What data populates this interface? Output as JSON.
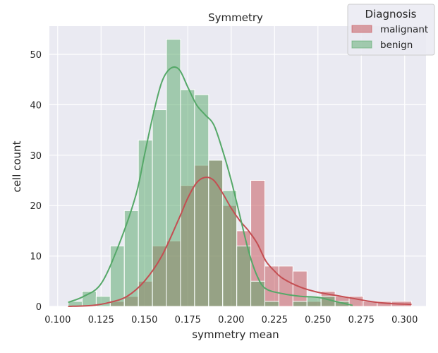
{
  "chart_data": {
    "type": "bar",
    "title": "Symmetry",
    "xlabel": "symmetry mean",
    "ylabel": "cell count",
    "xlim": [
      0.0952,
      0.3123
    ],
    "ylim": [
      0,
      55.6
    ],
    "xticks": [
      "0.100",
      "0.125",
      "0.150",
      "0.175",
      "0.200",
      "0.225",
      "0.250",
      "0.275",
      "0.300"
    ],
    "yticks": [
      "0",
      "10",
      "20",
      "30",
      "40",
      "50"
    ],
    "grid": true,
    "legend": {
      "title": "Diagnosis",
      "placement": "top-right"
    },
    "bin_edges": [
      0.106,
      0.1141,
      0.1222,
      0.1303,
      0.1384,
      0.1465,
      0.1546,
      0.1627,
      0.1708,
      0.1789,
      0.187,
      0.1951,
      0.2032,
      0.2113,
      0.2194,
      0.2275,
      0.2356,
      0.2437,
      0.2518,
      0.2599,
      0.268,
      0.2761,
      0.2842,
      0.2923,
      0.304
    ],
    "series": [
      {
        "name": "malignant",
        "color": "#c44e52",
        "values": [
          0,
          0,
          0,
          1,
          2,
          5,
          12,
          13,
          24,
          28,
          29,
          20,
          15,
          25,
          8,
          8,
          7,
          1,
          3,
          2,
          2,
          1,
          1,
          1
        ],
        "kde_x": [
          0.106,
          0.12,
          0.13,
          0.14,
          0.15,
          0.16,
          0.17,
          0.175,
          0.18,
          0.185,
          0.19,
          0.195,
          0.2,
          0.205,
          0.21,
          0.215,
          0.22,
          0.225,
          0.23,
          0.24,
          0.25,
          0.26,
          0.27,
          0.28,
          0.29,
          0.304
        ],
        "kde_y": [
          0.0,
          0.2,
          0.8,
          2.0,
          5.0,
          10.0,
          17.5,
          21.5,
          24.5,
          25.6,
          25.0,
          22.5,
          19.5,
          17.0,
          15.0,
          12.5,
          9.0,
          7.0,
          5.5,
          3.8,
          2.8,
          2.2,
          1.6,
          1.0,
          0.6,
          0.4
        ]
      },
      {
        "name": "benign",
        "color": "#55a868",
        "values": [
          1,
          3,
          2,
          12,
          19,
          33,
          39,
          53,
          43,
          42,
          29,
          23,
          12,
          5,
          1,
          0,
          1,
          2,
          2,
          1,
          0,
          0,
          0,
          0
        ],
        "kde_x": [
          0.106,
          0.115,
          0.125,
          0.135,
          0.145,
          0.15,
          0.155,
          0.16,
          0.165,
          0.17,
          0.175,
          0.18,
          0.185,
          0.19,
          0.195,
          0.2,
          0.205,
          0.21,
          0.215,
          0.22,
          0.23,
          0.24,
          0.25,
          0.26,
          0.27
        ],
        "kde_y": [
          0.8,
          2.0,
          4.5,
          12.0,
          22.0,
          30.0,
          38.0,
          44.5,
          47.2,
          47.0,
          43.5,
          40.0,
          38.0,
          36.0,
          31.0,
          25.0,
          18.0,
          11.0,
          6.0,
          3.5,
          2.5,
          2.0,
          1.8,
          1.0,
          0.2
        ]
      }
    ]
  }
}
